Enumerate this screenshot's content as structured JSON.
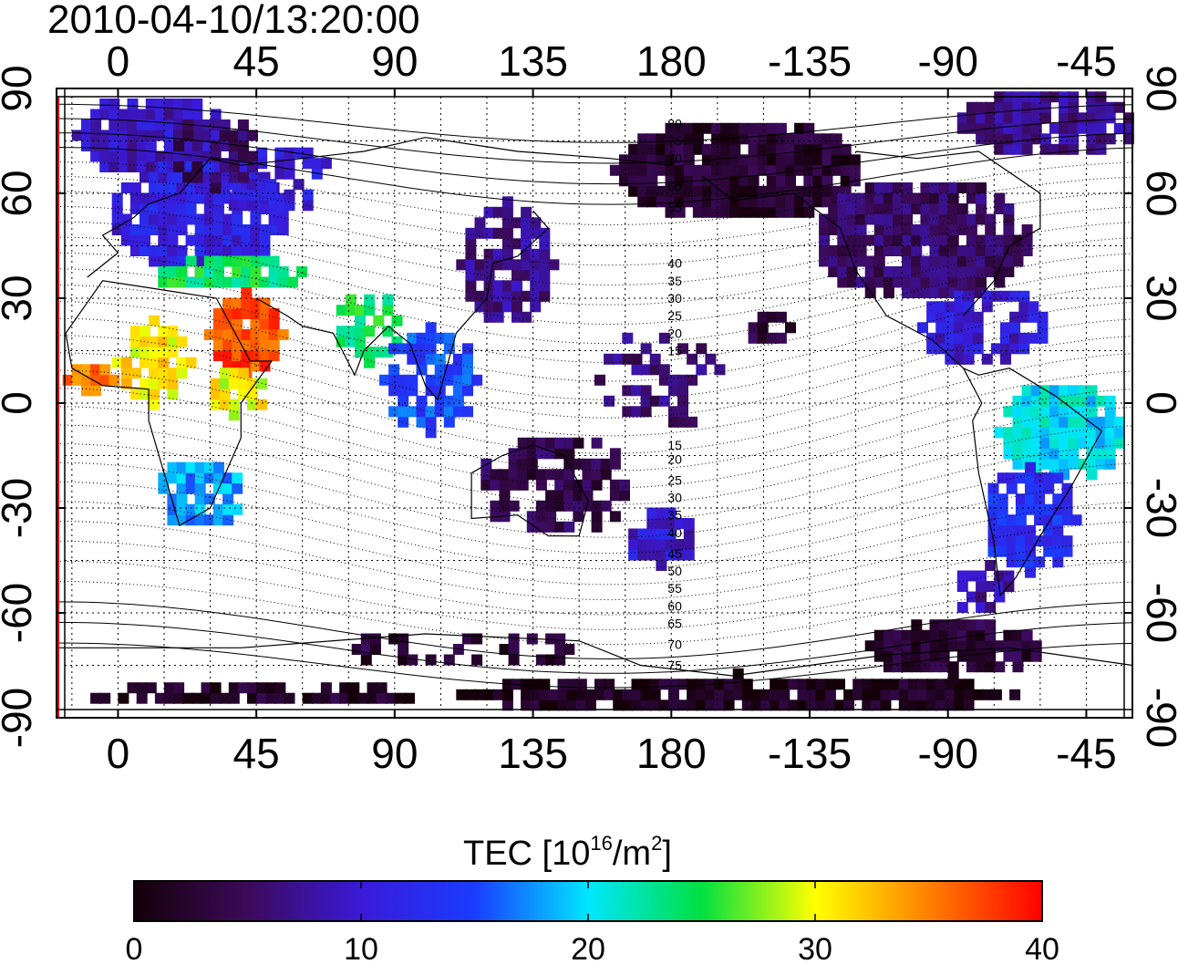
{
  "title": "2010-04-10/13:20:00",
  "colorbar": {
    "label_main": "TEC  [10",
    "label_sup1": "16",
    "label_mid": "/m",
    "label_sup2": "2",
    "label_end": "]",
    "ticks": [
      "0",
      "10",
      "20",
      "30",
      "40"
    ],
    "min": 0,
    "max": 40,
    "colors": [
      "#140008",
      "#3c0a5a",
      "#3a1ad8",
      "#1a3cff",
      "#00e6ff",
      "#00e040",
      "#ffff00",
      "#ff8000",
      "#ff0000"
    ]
  },
  "axes": {
    "x_top_ticks": [
      "0",
      "45",
      "90",
      "135",
      "180",
      "-135",
      "-90",
      "-45"
    ],
    "x_bottom_ticks": [
      "0",
      "45",
      "90",
      "135",
      "180",
      "-135",
      "-90",
      "-45"
    ],
    "y_left_ticks": [
      "90",
      "60",
      "30",
      "0",
      "-30",
      "-60",
      "-90"
    ],
    "y_right_ticks": [
      "90",
      "60",
      "30",
      "0",
      "-30",
      "-60",
      "-90"
    ]
  },
  "contour_labels": [
    "80",
    "75",
    "70",
    "60",
    "55",
    "40",
    "35",
    "30",
    "25",
    "20",
    "15",
    "15",
    "20",
    "25",
    "30",
    "35",
    "40",
    "45",
    "50",
    "55",
    "60",
    "65",
    "70",
    "75"
  ],
  "map": {
    "type": "heatmap",
    "lon_range": [
      -20,
      330
    ],
    "lat_range": [
      -90,
      90
    ],
    "grid": true
  }
}
